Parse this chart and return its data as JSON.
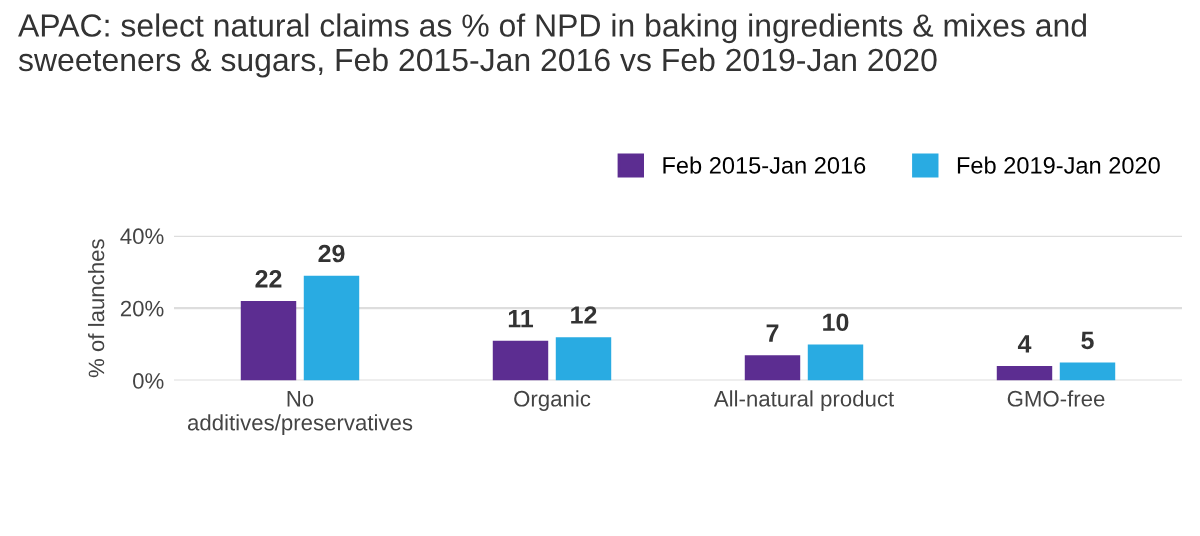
{
  "chart_data": {
    "type": "bar",
    "title": "APAC: select natural claims as % of NPD in baking ingredients & mixes and sweeteners & sugars, Feb 2015-Jan 2016 vs Feb 2019-Jan 2020",
    "ylabel": "% of launches",
    "categories": [
      "No\nadditives/preservatives",
      "Organic",
      "All-natural product",
      "GMO-free"
    ],
    "series": [
      {
        "name": "Feb 2015-Jan 2016",
        "color": "#5c2d91",
        "values": [
          22,
          11,
          7,
          4
        ]
      },
      {
        "name": "Feb 2019-Jan 2020",
        "color": "#29abe2",
        "values": [
          29,
          12,
          10,
          5
        ]
      }
    ],
    "ylim": [
      0,
      40
    ],
    "yticks": [
      {
        "value": 0,
        "label": "0%"
      },
      {
        "value": 20,
        "label": "20%"
      },
      {
        "value": 40,
        "label": "40%"
      }
    ],
    "grid": "y",
    "legend": "top right",
    "data_labels": true
  }
}
